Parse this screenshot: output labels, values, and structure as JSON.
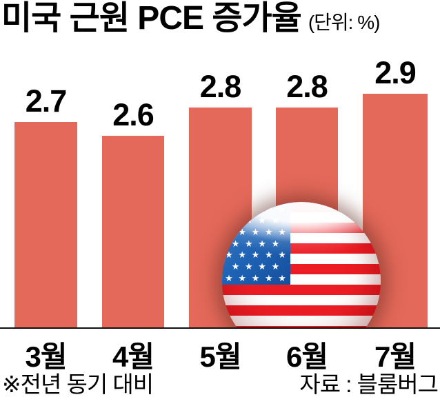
{
  "title": {
    "text": "미국 근원 PCE 증가율",
    "unit": "(단위: %)"
  },
  "chart_data": {
    "type": "bar",
    "title": "미국 근원 PCE 증가율",
    "unit_label": "(단위: %)",
    "categories": [
      "3월",
      "4월",
      "5월",
      "6월",
      "7월"
    ],
    "values": [
      2.7,
      2.6,
      2.8,
      2.8,
      2.9
    ],
    "value_labels": [
      "2.7",
      "2.6",
      "2.8",
      "2.8",
      "2.9"
    ],
    "xlabel": "",
    "ylabel": "",
    "ylim": [
      1.2,
      3.0
    ],
    "grid": false,
    "legend": "none",
    "bar_color": "#E4695A",
    "axis_line_color": "#111111",
    "note": "※전년 동기 대비"
  },
  "footer": {
    "footnote": "※전년 동기 대비",
    "source": "자료 : 블룸버그"
  },
  "flag": {
    "icon": "us-flag-icon",
    "star_rows": [
      "★ ★ ★ ★ ★",
      "★ ★ ★ ★",
      "★ ★ ★ ★ ★",
      "★ ★ ★ ★",
      "★ ★ ★ ★ ★",
      "★ ★ ★ ★",
      "★ ★ ★ ★ ★"
    ],
    "colors": {
      "red": "#EC1C24",
      "white": "#FFFFFF",
      "blue": "#1E62B4"
    }
  }
}
